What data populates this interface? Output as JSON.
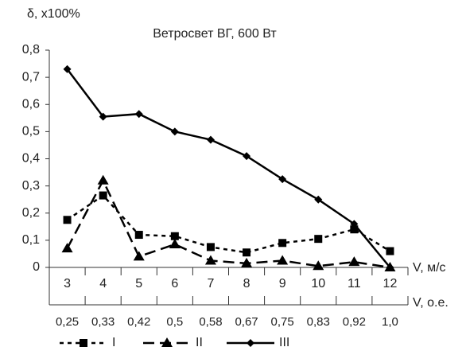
{
  "chart_data": {
    "type": "line",
    "title": "Ветросвет ВГ, 600 Вт",
    "y_label": "δ, x100%",
    "x_label": "V, м/с",
    "x2_label": "V, о.е.",
    "categories": [
      "3",
      "4",
      "5",
      "6",
      "7",
      "8",
      "9",
      "10",
      "11",
      "12"
    ],
    "categories2": [
      "0,25",
      "0,33",
      "0,42",
      "0,5",
      "0,58",
      "0,67",
      "0,75",
      "0,83",
      "0,92",
      "1,0"
    ],
    "ylim": [
      0,
      0.8
    ],
    "yticks": [
      0,
      {
        "value": 0.1,
        "label": "0,1"
      },
      {
        "value": 0.2,
        "label": "0,2"
      },
      {
        "value": 0.3,
        "label": "0,3"
      },
      {
        "value": 0.4,
        "label": "0,4"
      },
      {
        "value": 0.5,
        "label": "0,5"
      },
      {
        "value": 0.6,
        "label": "0,6"
      },
      {
        "value": 0.7,
        "label": "0,7"
      },
      {
        "value": 0.8,
        "label": "0,8"
      }
    ],
    "grid": false,
    "legend": "bottom",
    "series": [
      {
        "name": "I",
        "color": "#000000",
        "marker": "square",
        "dash": "5,5",
        "values": [
          0.175,
          0.265,
          0.12,
          0.115,
          0.075,
          0.055,
          0.09,
          0.105,
          0.14,
          0.06
        ]
      },
      {
        "name": "II",
        "color": "#000000",
        "marker": "triangle",
        "dash": "14,7",
        "values": [
          0.07,
          0.32,
          0.04,
          0.085,
          0.025,
          0.015,
          0.025,
          0.005,
          0.02,
          0.0
        ]
      },
      {
        "name": "III",
        "color": "#000000",
        "marker": "diamond",
        "dash": "none",
        "values": [
          0.73,
          0.555,
          0.565,
          0.5,
          0.47,
          0.41,
          0.325,
          0.25,
          0.16,
          0.0
        ]
      }
    ]
  }
}
